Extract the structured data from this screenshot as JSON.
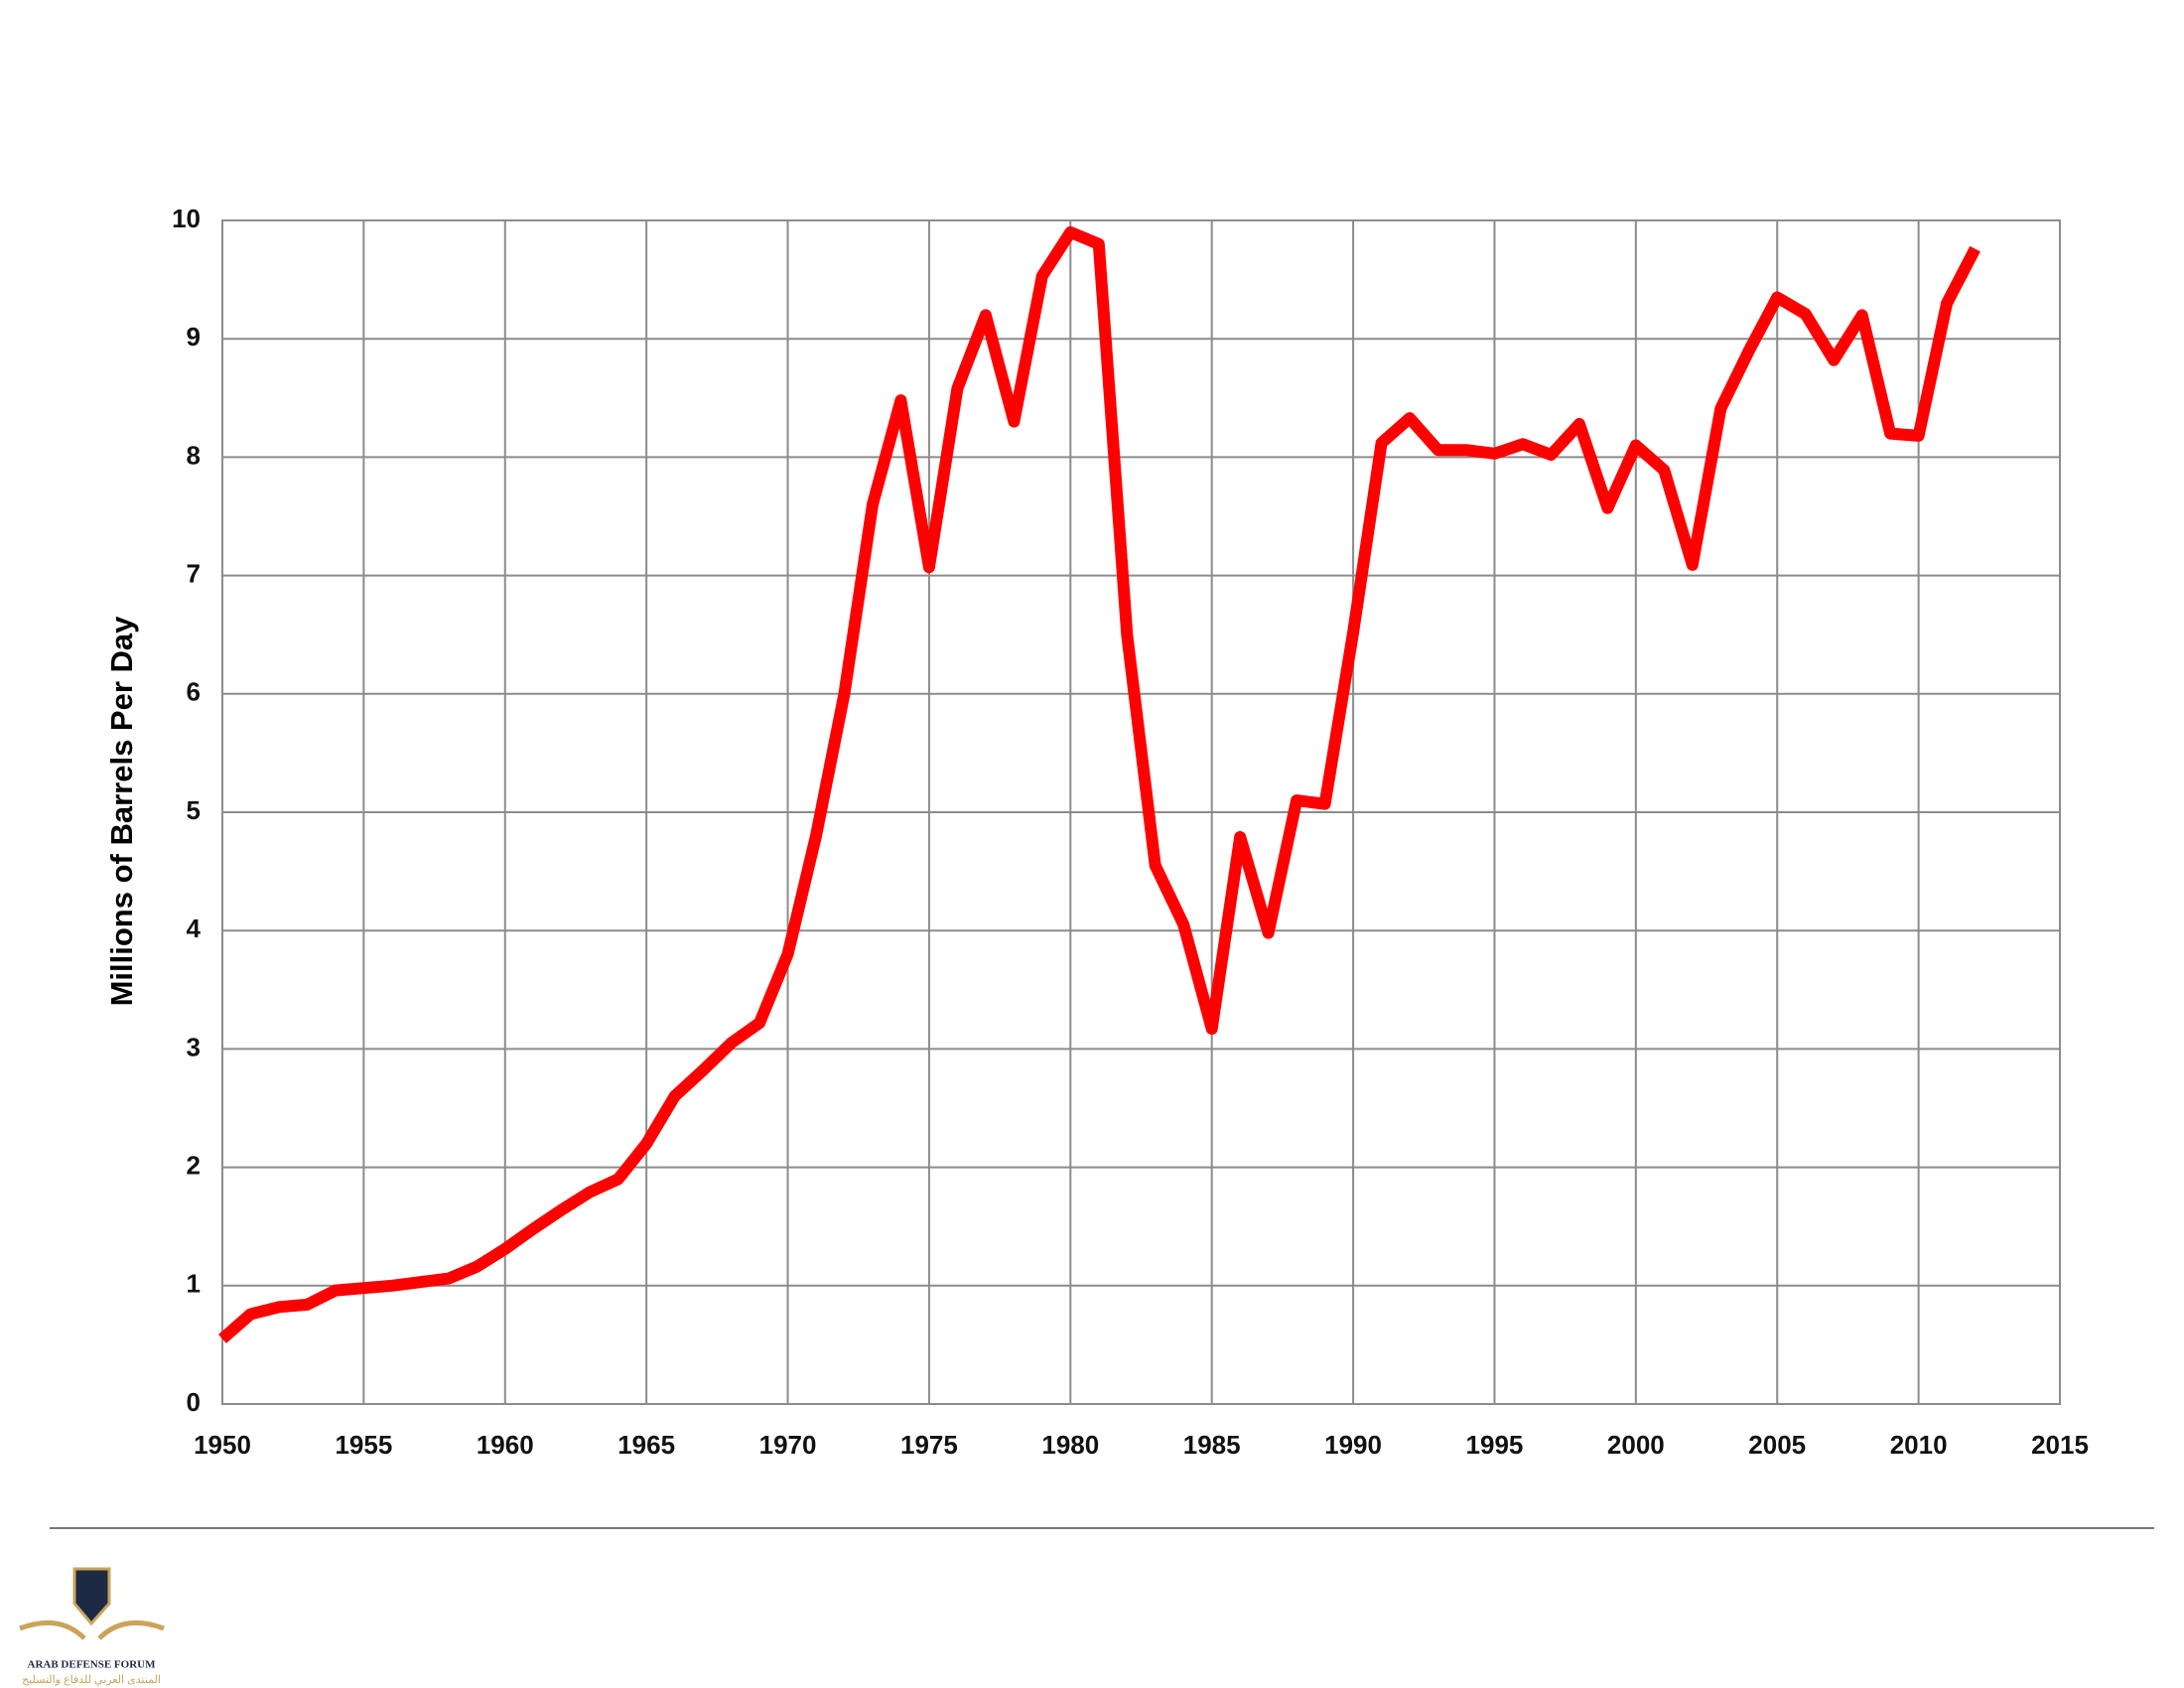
{
  "chart_data": {
    "type": "line",
    "y_label": "Millions of Barrels Per Day",
    "x": [
      1950,
      1951,
      1952,
      1953,
      1954,
      1955,
      1956,
      1957,
      1958,
      1959,
      1960,
      1961,
      1962,
      1963,
      1964,
      1965,
      1966,
      1967,
      1968,
      1969,
      1970,
      1971,
      1972,
      1973,
      1974,
      1975,
      1976,
      1977,
      1978,
      1979,
      1980,
      1981,
      1982,
      1983,
      1984,
      1985,
      1986,
      1987,
      1988,
      1989,
      1990,
      1991,
      1992,
      1993,
      1994,
      1995,
      1996,
      1997,
      1998,
      1999,
      2000,
      2001,
      2002,
      2003,
      2004,
      2005,
      2006,
      2007,
      2008,
      2009,
      2010,
      2011,
      2012
    ],
    "series": [
      {
        "color": "#ff0000",
        "values": [
          0.55,
          0.76,
          0.82,
          0.84,
          0.96,
          0.98,
          1.0,
          1.03,
          1.06,
          1.16,
          1.31,
          1.48,
          1.64,
          1.79,
          1.9,
          2.2,
          2.6,
          2.82,
          3.05,
          3.22,
          3.8,
          4.8,
          6.0,
          7.6,
          8.48,
          7.07,
          8.58,
          9.2,
          8.3,
          9.53,
          9.9,
          9.8,
          6.5,
          4.55,
          4.05,
          3.17,
          4.79,
          3.98,
          5.1,
          5.07,
          6.52,
          8.12,
          8.33,
          8.06,
          8.06,
          8.03,
          8.11,
          8.02,
          8.28,
          7.57,
          8.1,
          7.89,
          7.09,
          8.41,
          8.9,
          9.35,
          9.21,
          8.82,
          9.2,
          8.2,
          8.18,
          9.3,
          9.76
        ]
      }
    ],
    "xlim": [
      1950,
      2015
    ],
    "xticks": [
      1950,
      1955,
      1960,
      1965,
      1970,
      1975,
      1980,
      1985,
      1990,
      1995,
      2000,
      2005,
      2010,
      2015
    ],
    "ylim": [
      0,
      10
    ],
    "yticks": [
      0,
      1,
      2,
      3,
      4,
      5,
      6,
      7,
      8,
      9,
      10
    ],
    "grid": true
  },
  "logo": {
    "name": "ARAB DEFENSE FORUM",
    "subtitle": "المنتدى العربي للدفاع والتسليح"
  }
}
